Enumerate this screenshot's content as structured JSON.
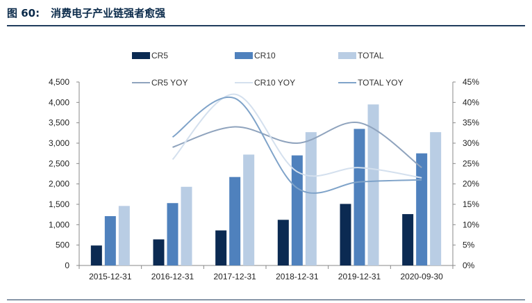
{
  "figure": {
    "label": "图 60:",
    "title": "消费电子产业链强者愈强"
  },
  "chart_data": {
    "type": "bar",
    "categories": [
      "2015-12-31",
      "2016-12-31",
      "2017-12-31",
      "2018-12-31",
      "2019-12-31",
      "2020-09-30"
    ],
    "series": [
      {
        "name": "CR5",
        "kind": "bar",
        "axis": "left",
        "color": "#0b2a52",
        "values": [
          490,
          640,
          860,
          1120,
          1510,
          1260
        ]
      },
      {
        "name": "CR10",
        "kind": "bar",
        "axis": "left",
        "color": "#4f81bd",
        "values": [
          1210,
          1530,
          2170,
          2700,
          3350,
          2750
        ]
      },
      {
        "name": "TOTAL",
        "kind": "bar",
        "axis": "left",
        "color": "#b9cde4",
        "values": [
          1460,
          1930,
          2720,
          3270,
          3950,
          3270
        ]
      },
      {
        "name": "CR5 YOY",
        "kind": "line",
        "axis": "right",
        "color": "#8fa3bd",
        "values": [
          null,
          0.29,
          0.34,
          0.3,
          0.35,
          0.24
        ]
      },
      {
        "name": "CR10 YOY",
        "kind": "line",
        "axis": "right",
        "color": "#d4e0ee",
        "values": [
          null,
          0.26,
          0.42,
          0.23,
          0.24,
          0.215
        ]
      },
      {
        "name": "TOTAL YOY",
        "kind": "line",
        "axis": "right",
        "color": "#7fa3c9",
        "values": [
          null,
          0.315,
          0.41,
          0.19,
          0.205,
          0.21
        ]
      }
    ],
    "y_left": {
      "ylim": [
        0,
        4500
      ],
      "ticks": [
        "0",
        "500",
        "1,000",
        "1,500",
        "2,000",
        "2,500",
        "3,000",
        "3,500",
        "4,000",
        "4,500"
      ]
    },
    "y_right": {
      "ylim": [
        0,
        0.45
      ],
      "ticks": [
        "0%",
        "5%",
        "10%",
        "15%",
        "20%",
        "25%",
        "30%",
        "35%",
        "40%",
        "45%"
      ]
    },
    "legend_position": "top",
    "grid": false
  }
}
